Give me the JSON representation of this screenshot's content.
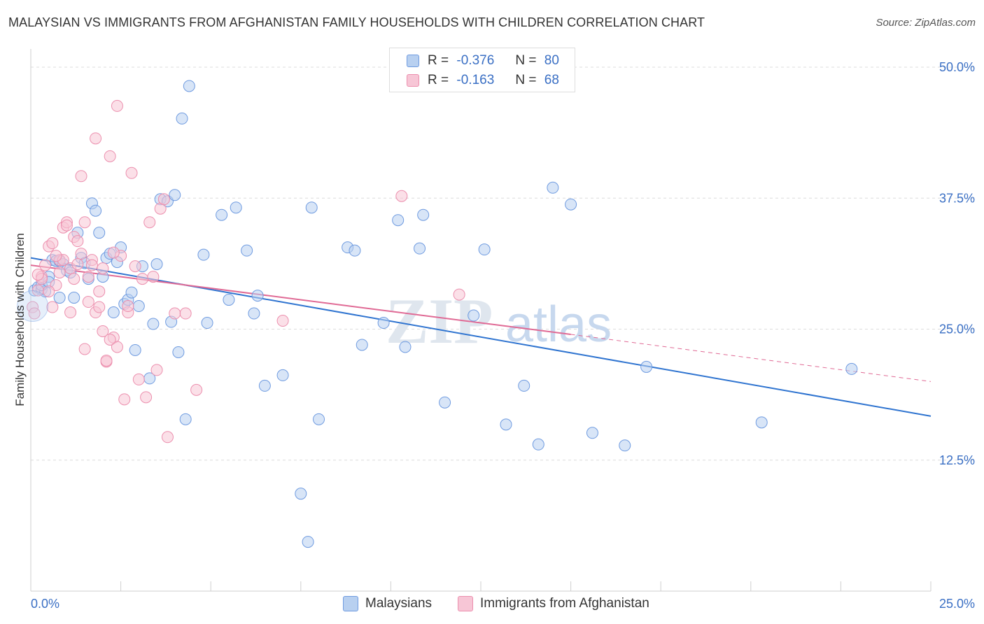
{
  "header": {
    "title": "MALAYSIAN VS IMMIGRANTS FROM AFGHANISTAN FAMILY HOUSEHOLDS WITH CHILDREN CORRELATION CHART",
    "source": "Source: ZipAtlas.com"
  },
  "legend": {
    "r_label": "R =",
    "n_label": "N =",
    "malaysians": {
      "r": "-0.376",
      "n": "80"
    },
    "afghan": {
      "r": "-0.163",
      "n": "68"
    }
  },
  "watermark": {
    "zip": "ZIP",
    "atlas": "atlas"
  },
  "colors": {
    "blue_fill": "#b8d0f0",
    "blue_stroke": "#6f9be0",
    "blue_line": "#2f74d0",
    "pink_fill": "#f7c6d6",
    "pink_stroke": "#ec8fae",
    "pink_line": "#e06a95",
    "tick_text": "#3a6fc4"
  },
  "chart_data": {
    "type": "scatter",
    "xlabel": "",
    "ylabel": "Family Households with Children",
    "xlim": [
      0,
      25
    ],
    "ylim": [
      0,
      50
    ],
    "x_tick_labels": [
      "0.0%",
      "25.0%"
    ],
    "y_ticks": [
      12.5,
      25.0,
      37.5,
      50.0
    ],
    "y_tick_labels": [
      "12.5%",
      "25.0%",
      "37.5%",
      "50.0%"
    ],
    "grid": "horizontal dashed",
    "legend_position": "bottom",
    "series": [
      {
        "name": "Malaysians",
        "color": "#6f9be0",
        "trend": {
          "x": [
            0,
            25
          ],
          "y": [
            31.8,
            16.7
          ]
        },
        "points": [
          [
            0.1,
            28.7
          ],
          [
            0.2,
            29.0
          ],
          [
            0.3,
            28.8
          ],
          [
            0.4,
            28.6
          ],
          [
            0.5,
            30.0
          ],
          [
            0.6,
            31.6
          ],
          [
            0.7,
            31.5
          ],
          [
            0.8,
            31.5
          ],
          [
            0.9,
            31.2
          ],
          [
            1.0,
            30.6
          ],
          [
            1.1,
            30.4
          ],
          [
            1.3,
            34.2
          ],
          [
            1.4,
            31.8
          ],
          [
            1.5,
            31.3
          ],
          [
            1.7,
            37.0
          ],
          [
            1.8,
            36.3
          ],
          [
            2.0,
            30.0
          ],
          [
            2.1,
            31.8
          ],
          [
            2.2,
            32.2
          ],
          [
            2.4,
            31.4
          ],
          [
            2.5,
            32.8
          ],
          [
            2.6,
            27.4
          ],
          [
            2.7,
            27.8
          ],
          [
            2.8,
            28.5
          ],
          [
            2.9,
            23.0
          ],
          [
            3.1,
            31.0
          ],
          [
            3.3,
            20.3
          ],
          [
            3.4,
            25.5
          ],
          [
            3.5,
            31.2
          ],
          [
            3.6,
            37.4
          ],
          [
            3.8,
            37.2
          ],
          [
            3.9,
            25.7
          ],
          [
            4.0,
            37.8
          ],
          [
            4.1,
            22.8
          ],
          [
            4.2,
            45.1
          ],
          [
            4.3,
            16.4
          ],
          [
            4.8,
            32.1
          ],
          [
            4.9,
            25.6
          ],
          [
            5.3,
            35.9
          ],
          [
            5.5,
            27.8
          ],
          [
            5.7,
            36.6
          ],
          [
            6.0,
            32.5
          ],
          [
            6.3,
            28.2
          ],
          [
            6.5,
            19.6
          ],
          [
            7.0,
            20.6
          ],
          [
            7.5,
            9.3
          ],
          [
            7.7,
            4.7
          ],
          [
            8.0,
            16.4
          ],
          [
            8.8,
            32.8
          ],
          [
            9.2,
            23.5
          ],
          [
            9.8,
            25.6
          ],
          [
            10.2,
            35.4
          ],
          [
            10.4,
            23.3
          ],
          [
            10.8,
            32.7
          ],
          [
            10.9,
            35.9
          ],
          [
            11.5,
            18.0
          ],
          [
            12.3,
            26.3
          ],
          [
            12.6,
            32.6
          ],
          [
            13.2,
            15.9
          ],
          [
            13.7,
            19.6
          ],
          [
            14.1,
            14.0
          ],
          [
            14.5,
            38.5
          ],
          [
            15.0,
            36.9
          ],
          [
            15.6,
            15.1
          ],
          [
            16.5,
            13.9
          ],
          [
            17.1,
            21.4
          ],
          [
            20.3,
            16.1
          ],
          [
            22.8,
            21.2
          ],
          [
            0.3,
            29.2
          ],
          [
            0.5,
            29.5
          ],
          [
            1.2,
            28.0
          ],
          [
            1.6,
            29.8
          ],
          [
            2.3,
            26.6
          ],
          [
            3.0,
            27.2
          ],
          [
            0.8,
            28.0
          ],
          [
            1.9,
            34.2
          ],
          [
            4.4,
            48.2
          ],
          [
            6.2,
            26.5
          ],
          [
            7.8,
            36.6
          ],
          [
            9.0,
            32.5
          ]
        ]
      },
      {
        "name": "Immigrants from Afghanistan",
        "color": "#ec8fae",
        "trend": {
          "x": [
            0,
            15
          ],
          "y": [
            31.1,
            24.5
          ]
        },
        "trend_ext": {
          "x": [
            15,
            25
          ],
          "y": [
            24.5,
            20.0
          ]
        },
        "points": [
          [
            0.05,
            27.1
          ],
          [
            0.1,
            26.5
          ],
          [
            0.2,
            28.7
          ],
          [
            0.3,
            30.0
          ],
          [
            0.4,
            31.1
          ],
          [
            0.5,
            32.9
          ],
          [
            0.6,
            33.2
          ],
          [
            0.7,
            29.2
          ],
          [
            0.8,
            31.6
          ],
          [
            0.9,
            34.7
          ],
          [
            1.0,
            35.2
          ],
          [
            1.1,
            30.8
          ],
          [
            1.2,
            33.8
          ],
          [
            1.3,
            33.4
          ],
          [
            1.4,
            32.2
          ],
          [
            1.5,
            23.1
          ],
          [
            1.6,
            27.6
          ],
          [
            1.7,
            31.6
          ],
          [
            1.8,
            43.2
          ],
          [
            1.9,
            28.6
          ],
          [
            2.0,
            30.8
          ],
          [
            2.1,
            21.9
          ],
          [
            2.2,
            41.5
          ],
          [
            2.3,
            24.2
          ],
          [
            2.4,
            46.3
          ],
          [
            2.5,
            32.0
          ],
          [
            2.6,
            18.3
          ],
          [
            2.7,
            26.6
          ],
          [
            2.8,
            39.9
          ],
          [
            2.9,
            31.0
          ],
          [
            3.0,
            20.2
          ],
          [
            3.1,
            29.8
          ],
          [
            3.2,
            18.5
          ],
          [
            3.3,
            35.2
          ],
          [
            3.4,
            30.0
          ],
          [
            3.5,
            21.1
          ],
          [
            3.6,
            36.5
          ],
          [
            3.7,
            37.4
          ],
          [
            3.8,
            14.7
          ],
          [
            4.0,
            26.5
          ],
          [
            4.3,
            26.5
          ],
          [
            4.6,
            19.2
          ],
          [
            0.3,
            29.8
          ],
          [
            0.6,
            27.1
          ],
          [
            0.9,
            31.6
          ],
          [
            1.2,
            29.8
          ],
          [
            1.5,
            35.2
          ],
          [
            1.8,
            26.6
          ],
          [
            2.1,
            22.0
          ],
          [
            2.4,
            23.3
          ],
          [
            2.7,
            27.2
          ],
          [
            0.5,
            28.6
          ],
          [
            0.8,
            30.4
          ],
          [
            1.1,
            26.6
          ],
          [
            1.4,
            39.6
          ],
          [
            1.7,
            31.1
          ],
          [
            2.0,
            24.8
          ],
          [
            2.3,
            32.3
          ],
          [
            7.0,
            25.8
          ],
          [
            10.3,
            37.7
          ],
          [
            11.9,
            28.3
          ],
          [
            0.2,
            30.2
          ],
          [
            0.7,
            32.0
          ],
          [
            1.0,
            34.9
          ],
          [
            1.3,
            31.2
          ],
          [
            1.6,
            30.0
          ],
          [
            1.9,
            27.1
          ],
          [
            2.2,
            24.0
          ]
        ]
      }
    ]
  },
  "bottom_legend": {
    "malaysians": "Malaysians",
    "afghan": "Immigrants from Afghanistan"
  }
}
